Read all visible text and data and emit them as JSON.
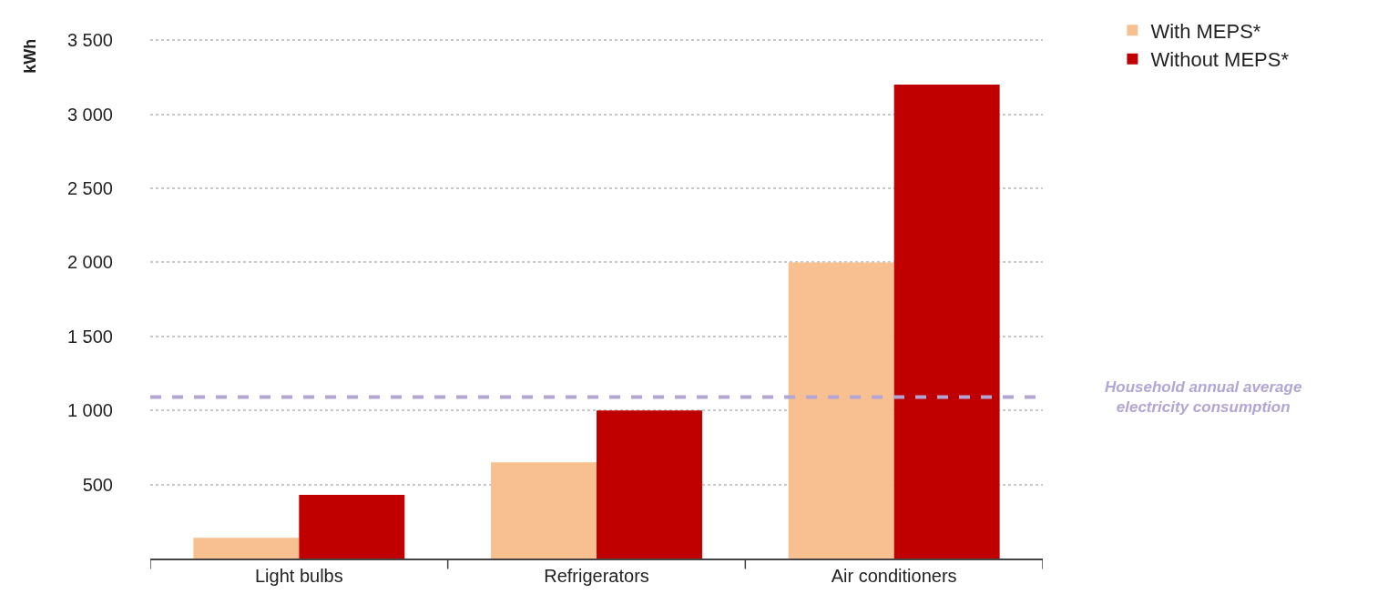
{
  "chart_data": {
    "type": "bar",
    "ylabel": "kWh",
    "categories": [
      "Light bulbs",
      "Refrigerators",
      "Air conditioners"
    ],
    "series": [
      {
        "name": "With MEPS*",
        "color": "#f8c090",
        "values": [
          140,
          650,
          2000
        ]
      },
      {
        "name": "Without MEPS*",
        "color": "#c00000",
        "values": [
          430,
          1000,
          3200
        ]
      }
    ],
    "ylim": [
      0,
      3520
    ],
    "yticks": [
      {
        "value": 500,
        "label": "500"
      },
      {
        "value": 1000,
        "label": "1 000"
      },
      {
        "value": 1500,
        "label": "1 500"
      },
      {
        "value": 2000,
        "label": "2 000"
      },
      {
        "value": 2500,
        "label": "2 500"
      },
      {
        "value": 3000,
        "label": "3 000"
      },
      {
        "value": 3500,
        "label": "3 500"
      }
    ],
    "grid": "y",
    "legend": "top right",
    "ref_lines": [
      {
        "axis": "y",
        "value": 1090,
        "label": "Household annual average\nelectricity consumption",
        "color": "#b3a6d4",
        "line_style": "dashed"
      }
    ]
  }
}
